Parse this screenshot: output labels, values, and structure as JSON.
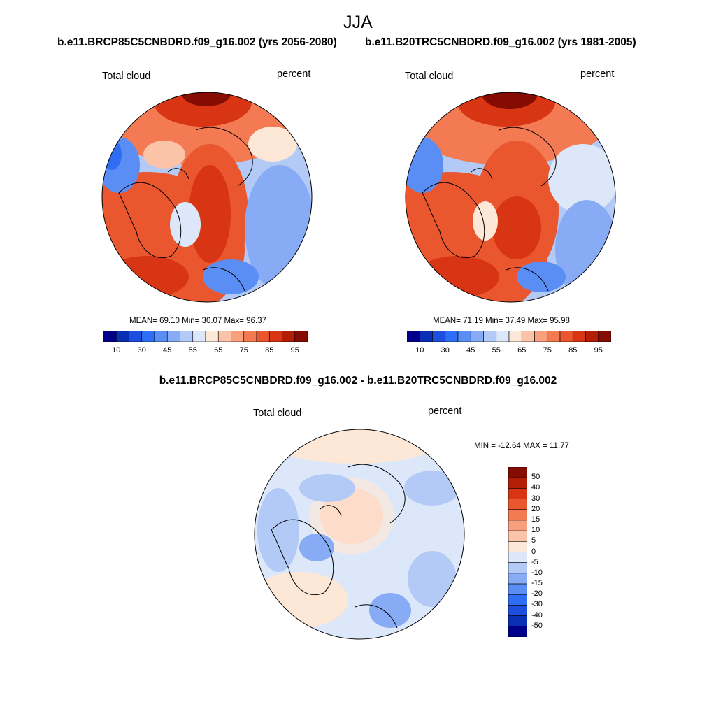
{
  "title": "JJA",
  "panel_left": {
    "title": "b.e11.BRCP85C5CNBDRD.f09_g16.002 (yrs 2056-2080)",
    "variable": "Total cloud",
    "units": "percent",
    "stats": "MEAN=  69.10  Min=  30.07  Max=  96.37"
  },
  "panel_right": {
    "title": "b.e11.B20TRC5CNBDRD.f09_g16.002 (yrs 1981-2005)",
    "variable": "Total cloud",
    "units": "percent",
    "stats": "MEAN=  71.19  Min=  37.49  Max=  95.98"
  },
  "panel_diff": {
    "title": "b.e11.BRCP85C5CNBDRD.f09_g16.002 - b.e11.B20TRC5CNBDRD.f09_g16.002",
    "variable": "Total cloud",
    "units": "percent",
    "stats": "MIN = -12.64 MAX =  11.77"
  },
  "colorbar_abs": {
    "colors": [
      "#00008b",
      "#0a2eb4",
      "#1e4ee0",
      "#2f6df5",
      "#5a8ef5",
      "#88abf5",
      "#b3caf7",
      "#dce8fa",
      "#fde8d8",
      "#fbc4a8",
      "#f8a07e",
      "#f37a52",
      "#ea562e",
      "#d83514",
      "#b41d06",
      "#850c02"
    ],
    "labels": [
      "10",
      "30",
      "45",
      "55",
      "65",
      "75",
      "85",
      "95"
    ]
  },
  "colorbar_diff": {
    "colors": [
      "#850c02",
      "#b41d06",
      "#d83514",
      "#ea562e",
      "#f37a52",
      "#f8a07e",
      "#fbc4a8",
      "#fde8d8",
      "#dce8fa",
      "#b3caf7",
      "#88abf5",
      "#5a8ef5",
      "#2f6df5",
      "#1e4ee0",
      "#0a2eb4",
      "#00008b"
    ],
    "labels": [
      "50",
      "40",
      "30",
      "20",
      "15",
      "10",
      "5",
      "0",
      "-5",
      "-10",
      "-15",
      "-20",
      "-30",
      "-40",
      "-50"
    ]
  },
  "map_palette": {
    "deep_red": "#850c02",
    "red": "#d83514",
    "orange_red": "#ea562e",
    "salmon": "#f8a07e",
    "light_salmon": "#fbc4a8",
    "cream": "#fde8d8",
    "pale_blue": "#dce8fa",
    "light_blue": "#b3caf7",
    "blue": "#88abf5",
    "mid_blue": "#5a8ef5",
    "strong_blue": "#2f6df5"
  }
}
